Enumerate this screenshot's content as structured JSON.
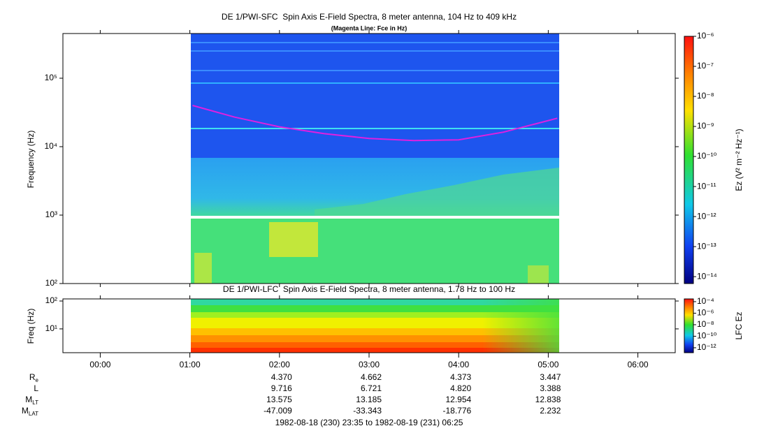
{
  "chart_data": [
    {
      "type": "spectrogram",
      "title": "DE 1/PWI-SFC  Spin Axis E-Field Spectra, 8 meter antenna, 104 Hz to 409 kHz",
      "subtitle": "(Magenta Line: Fce in Hz)",
      "y_label": "Frequency (Hz)",
      "y_log": true,
      "xlim": [
        -0.4167,
        6.4167
      ],
      "ylim": [
        100,
        450000
      ],
      "yticks": [
        {
          "value": 100,
          "label": "10²"
        },
        {
          "value": 1000,
          "label": "10³"
        },
        {
          "value": 10000,
          "label": "10⁴"
        },
        {
          "value": 100000,
          "label": "10⁵"
        }
      ],
      "colorbar": {
        "label": "Ez (V² m⁻² Hz⁻¹)",
        "log": true,
        "clim": [
          5.9e-15,
          1e-06
        ],
        "ticks": [
          {
            "value": 1e-06,
            "label": "10⁻⁶"
          },
          {
            "value": 1e-07,
            "label": "10⁻⁷"
          },
          {
            "value": 1e-08,
            "label": "10⁻⁸"
          },
          {
            "value": 1e-09,
            "label": "10⁻⁹"
          },
          {
            "value": 1e-10,
            "label": "10⁻¹⁰"
          },
          {
            "value": 1e-11,
            "label": "10⁻¹¹"
          },
          {
            "value": 1e-12,
            "label": "10⁻¹²"
          },
          {
            "value": 1e-13,
            "label": "10⁻¹³"
          },
          {
            "value": 1e-14,
            "label": "10⁻¹⁴"
          }
        ]
      },
      "series": [
        {
          "color": "#e020e0",
          "x": [
            1.03,
            1.5,
            2,
            2.5,
            3,
            3.5,
            4,
            4.5,
            5.1
          ],
          "values": [
            40000,
            27000,
            19500,
            15500,
            13200,
            12300,
            12600,
            16300,
            26000
          ]
        }
      ]
    },
    {
      "type": "spectrogram",
      "title": "DE 1/PWI-LFC  Spin Axis E-Field Spectra, 8 meter antenna, 1.78 Hz to 100 Hz",
      "y_label": "Freq (Hz)",
      "y_log": true,
      "xlim": [
        -0.4167,
        6.4167
      ],
      "ylim": [
        1.4,
        119
      ],
      "yticks": [
        {
          "value": 10,
          "label": "10¹"
        },
        {
          "value": 100,
          "label": "10²"
        }
      ],
      "xticks": [
        {
          "value": 0,
          "label": "00:00"
        },
        {
          "value": 1,
          "label": "01:00"
        },
        {
          "value": 2,
          "label": "02:00"
        },
        {
          "value": 3,
          "label": "03:00"
        },
        {
          "value": 4,
          "label": "04:00"
        },
        {
          "value": 5,
          "label": "05:00"
        },
        {
          "value": 6,
          "label": "06:00"
        }
      ],
      "colorbar": {
        "label": "LFC Ez",
        "log": true,
        "clim": [
          1.4e-13,
          0.0003
        ],
        "ticks": [
          {
            "value": 0.0001,
            "label": "10⁻⁴"
          },
          {
            "value": 1e-06,
            "label": "10⁻⁶"
          },
          {
            "value": 1e-08,
            "label": "10⁻⁸"
          },
          {
            "value": 1e-10,
            "label": "10⁻¹⁰"
          },
          {
            "value": 1e-12,
            "label": "10⁻¹²"
          }
        ]
      }
    }
  ],
  "ephemeris": {
    "rows": [
      {
        "label": "R",
        "sub": "e",
        "values": [
          "4.370",
          "4.662",
          "4.373",
          "3.447"
        ]
      },
      {
        "label": "L",
        "values": [
          "9.716",
          "6.721",
          "4.820",
          "3.388"
        ]
      },
      {
        "label": "M",
        "sub": "LT",
        "values": [
          "13.575",
          "13.185",
          "12.954",
          "12.838"
        ]
      },
      {
        "label": "M",
        "sub": "LAT",
        "values": [
          "-47.009",
          "-33.343",
          "-18.776",
          "2.232"
        ]
      }
    ]
  },
  "time_range": "1982-08-18 (230) 23:35 to 1982-08-19 (231) 06:25"
}
